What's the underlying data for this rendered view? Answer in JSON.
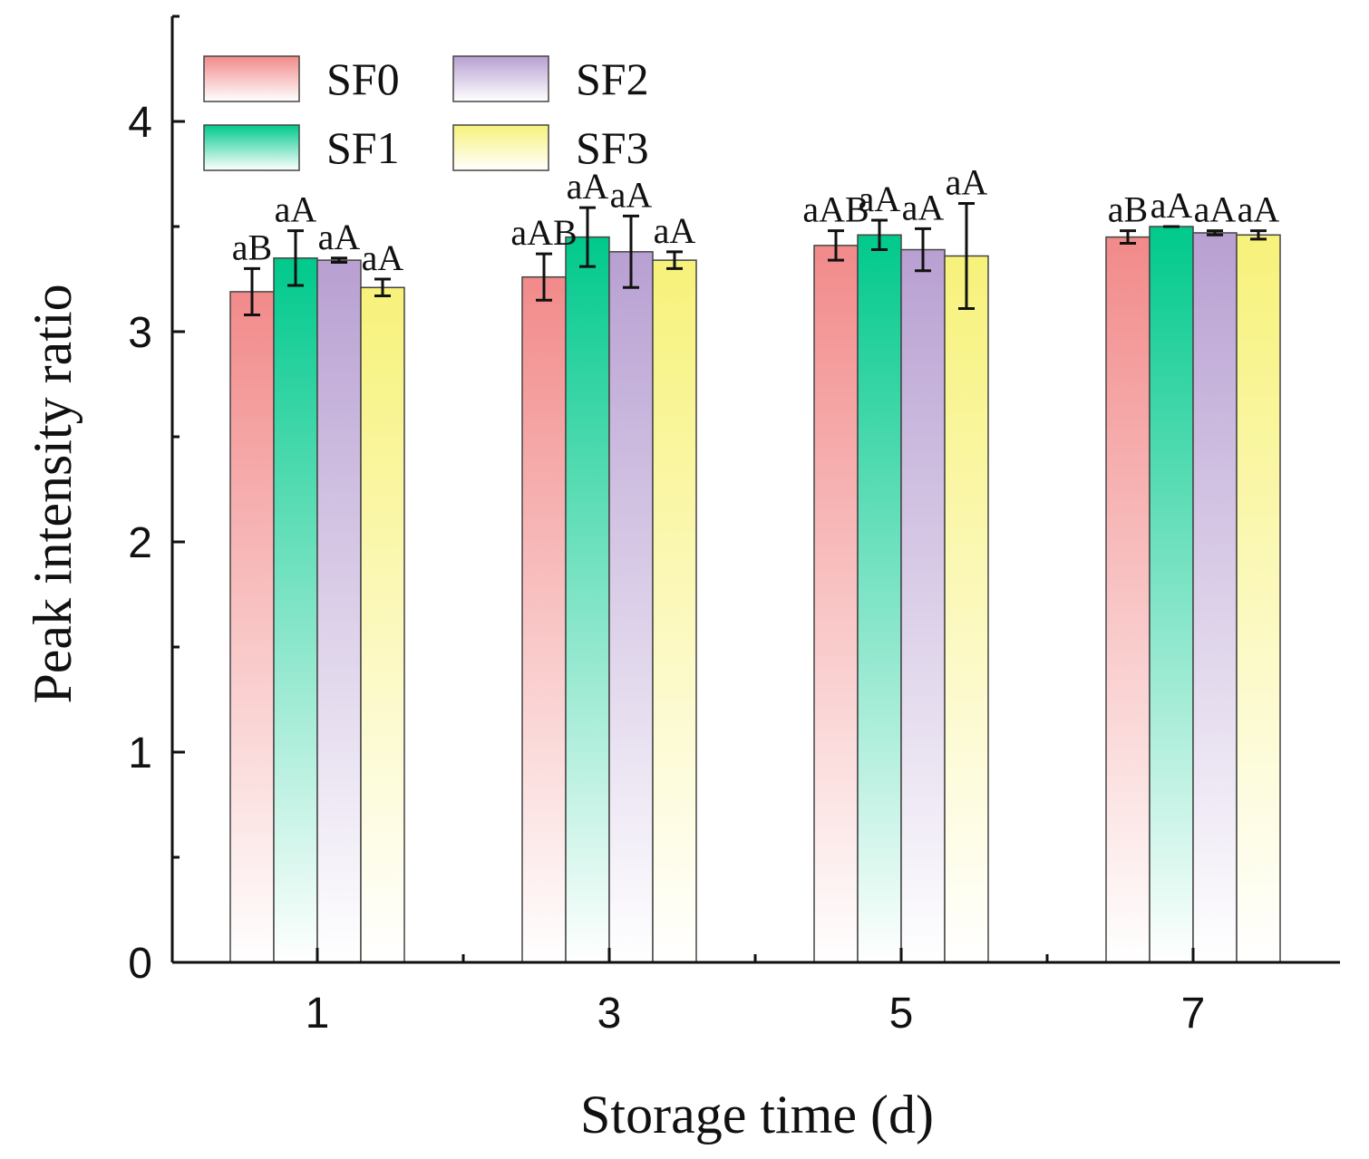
{
  "chart_data": {
    "type": "bar",
    "title": "",
    "xlabel": "Storage time (d)",
    "ylabel": "Peak intensity ratio",
    "ylim": [
      0,
      4.5
    ],
    "yticks": [
      "0",
      "1",
      "2",
      "3",
      "4"
    ],
    "categories": [
      "1",
      "3",
      "5",
      "7"
    ],
    "legend_position": "top-left",
    "series": [
      {
        "name": "SF0",
        "color": "#f28a8a",
        "values": [
          3.19,
          3.26,
          3.41,
          3.45
        ],
        "errors": [
          0.11,
          0.11,
          0.07,
          0.03
        ],
        "labels": [
          "aB",
          "aAB",
          "aAB",
          "aB"
        ]
      },
      {
        "name": "SF1",
        "color": "#00c98c",
        "values": [
          3.35,
          3.45,
          3.46,
          3.5
        ],
        "errors": [
          0.13,
          0.14,
          0.07,
          0.0
        ],
        "labels": [
          "aA",
          "aA",
          "aA",
          "aA"
        ]
      },
      {
        "name": "SF2",
        "color": "#b8a0d2",
        "values": [
          3.34,
          3.38,
          3.39,
          3.47
        ],
        "errors": [
          0.01,
          0.17,
          0.1,
          0.01
        ],
        "labels": [
          "aA",
          "aA",
          "aA",
          "aA"
        ]
      },
      {
        "name": "SF3",
        "color": "#f7f27a",
        "values": [
          3.21,
          3.34,
          3.36,
          3.46
        ],
        "errors": [
          0.04,
          0.04,
          0.25,
          0.02
        ],
        "labels": [
          "aA",
          "aA",
          "aA",
          "aA"
        ]
      }
    ]
  }
}
